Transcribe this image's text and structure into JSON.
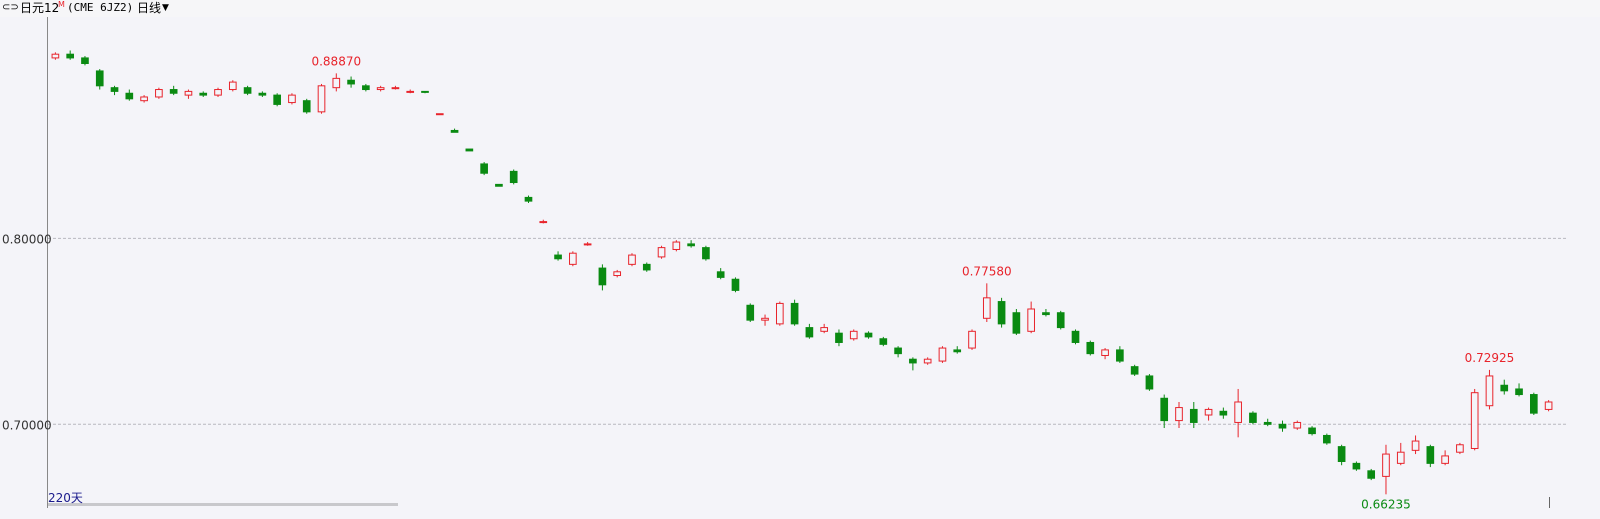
{
  "header": {
    "symbol": "日元12",
    "superscript": "M",
    "contract": "(CME 6JZ2)",
    "period": "日线"
  },
  "chart_data": {
    "type": "candlestick",
    "ylim": [
      0.655,
      0.919
    ],
    "yticks": [
      {
        "value": 0.8,
        "label": "0.80000"
      },
      {
        "value": 0.7,
        "label": "0.70000"
      }
    ],
    "grid": true,
    "up_color": "#e8242c",
    "down_color": "#0a8a12",
    "range_label": "220天",
    "ohlc": [
      [
        0.897,
        0.9,
        0.896,
        0.899
      ],
      [
        0.899,
        0.901,
        0.896,
        0.897
      ],
      [
        0.897,
        0.898,
        0.893,
        0.894
      ],
      [
        0.89,
        0.891,
        0.88,
        0.882
      ],
      [
        0.881,
        0.882,
        0.877,
        0.879
      ],
      [
        0.878,
        0.88,
        0.874,
        0.875
      ],
      [
        0.874,
        0.877,
        0.873,
        0.876
      ],
      [
        0.876,
        0.881,
        0.875,
        0.88
      ],
      [
        0.88,
        0.882,
        0.877,
        0.878
      ],
      [
        0.877,
        0.88,
        0.875,
        0.879
      ],
      [
        0.878,
        0.879,
        0.876,
        0.877
      ],
      [
        0.877,
        0.881,
        0.876,
        0.88
      ],
      [
        0.88,
        0.885,
        0.879,
        0.884
      ],
      [
        0.881,
        0.882,
        0.877,
        0.878
      ],
      [
        0.878,
        0.879,
        0.876,
        0.877
      ],
      [
        0.877,
        0.878,
        0.871,
        0.872
      ],
      [
        0.873,
        0.878,
        0.872,
        0.877
      ],
      [
        0.874,
        0.875,
        0.867,
        0.868
      ],
      [
        0.868,
        0.883,
        0.867,
        0.882
      ],
      [
        0.881,
        0.8887,
        0.879,
        0.886
      ],
      [
        0.885,
        0.887,
        0.881,
        0.883
      ],
      [
        0.882,
        0.883,
        0.879,
        0.88
      ],
      [
        0.88,
        0.882,
        0.879,
        0.881
      ],
      [
        0.881,
        0.882,
        0.88,
        0.881
      ],
      [
        0.879,
        0.88,
        0.878,
        0.879
      ],
      [
        0.879,
        0.879,
        0.878,
        0.8785
      ],
      [
        0.867,
        0.867,
        0.867,
        0.867
      ],
      [
        0.858,
        0.859,
        0.857,
        0.857
      ],
      [
        0.848,
        0.848,
        0.847,
        0.847
      ],
      [
        0.84,
        0.841,
        0.834,
        0.835
      ],
      [
        0.829,
        0.829,
        0.828,
        0.828
      ],
      [
        0.836,
        0.837,
        0.829,
        0.83
      ],
      [
        0.822,
        0.823,
        0.819,
        0.82
      ],
      [
        0.809,
        0.81,
        0.808,
        0.809
      ],
      [
        0.791,
        0.793,
        0.788,
        0.789
      ],
      [
        0.786,
        0.793,
        0.785,
        0.792
      ],
      [
        0.797,
        0.798,
        0.796,
        0.797
      ],
      [
        0.784,
        0.786,
        0.772,
        0.775
      ],
      [
        0.78,
        0.783,
        0.779,
        0.782
      ],
      [
        0.786,
        0.792,
        0.785,
        0.791
      ],
      [
        0.786,
        0.787,
        0.782,
        0.783
      ],
      [
        0.79,
        0.796,
        0.789,
        0.795
      ],
      [
        0.794,
        0.799,
        0.793,
        0.798
      ],
      [
        0.797,
        0.799,
        0.795,
        0.796
      ],
      [
        0.795,
        0.796,
        0.788,
        0.789
      ],
      [
        0.782,
        0.784,
        0.778,
        0.779
      ],
      [
        0.778,
        0.779,
        0.771,
        0.772
      ],
      [
        0.764,
        0.765,
        0.755,
        0.756
      ],
      [
        0.756,
        0.759,
        0.753,
        0.757
      ],
      [
        0.754,
        0.766,
        0.753,
        0.765
      ],
      [
        0.765,
        0.767,
        0.753,
        0.754
      ],
      [
        0.752,
        0.754,
        0.746,
        0.747
      ],
      [
        0.75,
        0.754,
        0.749,
        0.752
      ],
      [
        0.749,
        0.751,
        0.742,
        0.744
      ],
      [
        0.746,
        0.751,
        0.745,
        0.75
      ],
      [
        0.749,
        0.75,
        0.746,
        0.747
      ],
      [
        0.746,
        0.747,
        0.742,
        0.743
      ],
      [
        0.741,
        0.742,
        0.736,
        0.738
      ],
      [
        0.735,
        0.736,
        0.729,
        0.733
      ],
      [
        0.733,
        0.736,
        0.732,
        0.735
      ],
      [
        0.734,
        0.742,
        0.733,
        0.741
      ],
      [
        0.74,
        0.742,
        0.738,
        0.739
      ],
      [
        0.741,
        0.751,
        0.74,
        0.75
      ],
      [
        0.757,
        0.7758,
        0.755,
        0.768
      ],
      [
        0.766,
        0.768,
        0.752,
        0.754
      ],
      [
        0.76,
        0.762,
        0.748,
        0.749
      ],
      [
        0.75,
        0.766,
        0.749,
        0.762
      ],
      [
        0.76,
        0.762,
        0.758,
        0.759
      ],
      [
        0.76,
        0.761,
        0.751,
        0.752
      ],
      [
        0.75,
        0.751,
        0.743,
        0.744
      ],
      [
        0.744,
        0.745,
        0.737,
        0.738
      ],
      [
        0.737,
        0.741,
        0.735,
        0.74
      ],
      [
        0.74,
        0.742,
        0.733,
        0.734
      ],
      [
        0.731,
        0.732,
        0.726,
        0.727
      ],
      [
        0.726,
        0.727,
        0.718,
        0.719
      ],
      [
        0.714,
        0.716,
        0.698,
        0.702
      ],
      [
        0.702,
        0.712,
        0.698,
        0.709
      ],
      [
        0.708,
        0.712,
        0.698,
        0.701
      ],
      [
        0.705,
        0.709,
        0.702,
        0.708
      ],
      [
        0.707,
        0.709,
        0.703,
        0.705
      ],
      [
        0.701,
        0.719,
        0.693,
        0.712
      ],
      [
        0.706,
        0.707,
        0.7,
        0.701
      ],
      [
        0.701,
        0.703,
        0.699,
        0.7
      ],
      [
        0.7,
        0.702,
        0.696,
        0.698
      ],
      [
        0.698,
        0.702,
        0.697,
        0.701
      ],
      [
        0.698,
        0.699,
        0.694,
        0.695
      ],
      [
        0.694,
        0.695,
        0.689,
        0.69
      ],
      [
        0.688,
        0.689,
        0.678,
        0.68
      ],
      [
        0.679,
        0.68,
        0.675,
        0.676
      ],
      [
        0.675,
        0.676,
        0.67,
        0.671
      ],
      [
        0.672,
        0.689,
        0.66235,
        0.684
      ],
      [
        0.679,
        0.69,
        0.678,
        0.685
      ],
      [
        0.686,
        0.694,
        0.684,
        0.691
      ],
      [
        0.688,
        0.689,
        0.677,
        0.679
      ],
      [
        0.679,
        0.686,
        0.678,
        0.683
      ],
      [
        0.685,
        0.69,
        0.684,
        0.689
      ],
      [
        0.687,
        0.719,
        0.686,
        0.717
      ],
      [
        0.71,
        0.72925,
        0.708,
        0.726
      ],
      [
        0.721,
        0.724,
        0.716,
        0.718
      ],
      [
        0.719,
        0.722,
        0.715,
        0.716
      ],
      [
        0.716,
        0.717,
        0.705,
        0.706
      ],
      [
        0.708,
        0.713,
        0.707,
        0.712
      ]
    ],
    "annotations": [
      {
        "label": "0.88870",
        "value": 0.8887
      },
      {
        "label": "0.77580",
        "value": 0.7758
      },
      {
        "label": "0.66235",
        "value": 0.66235
      },
      {
        "label": "0.72925",
        "value": 0.72925
      }
    ]
  }
}
